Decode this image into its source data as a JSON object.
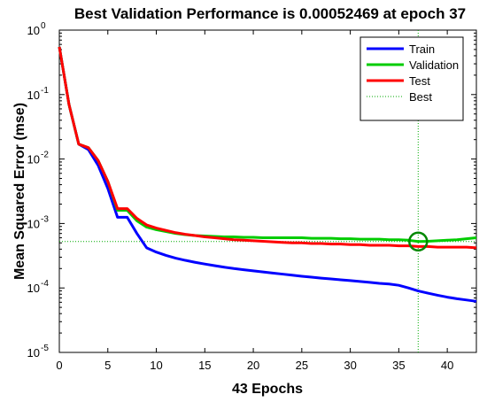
{
  "chart_data": {
    "type": "line",
    "title": "Best Validation Performance is 0.00052469 at epoch 37",
    "xlabel": "43 Epochs",
    "ylabel": "Mean Squared Error  (mse)",
    "xlim": [
      0,
      43
    ],
    "ylim": [
      1e-05,
      1
    ],
    "yscale": "log",
    "x_ticks": [
      "0",
      "5",
      "10",
      "15",
      "20",
      "25",
      "30",
      "35",
      "40"
    ],
    "y_ticks": [
      {
        "base": "10",
        "exp": "0"
      },
      {
        "base": "10",
        "exp": "-1"
      },
      {
        "base": "10",
        "exp": "-2"
      },
      {
        "base": "10",
        "exp": "-3"
      },
      {
        "base": "10",
        "exp": "-4"
      },
      {
        "base": "10",
        "exp": "-5"
      }
    ],
    "legend_position": "top-right",
    "series": [
      {
        "name": "Train",
        "color": "#0000ff",
        "x": [
          0,
          1,
          2,
          3,
          4,
          5,
          6,
          7,
          8,
          9,
          10,
          11,
          12,
          13,
          14,
          15,
          16,
          17,
          18,
          19,
          20,
          21,
          22,
          23,
          24,
          25,
          26,
          27,
          28,
          29,
          30,
          31,
          32,
          33,
          34,
          35,
          36,
          37,
          38,
          39,
          40,
          41,
          42,
          43
        ],
        "values": [
          0.55,
          0.07,
          0.017,
          0.014,
          0.008,
          0.0035,
          0.00125,
          0.00125,
          0.0007,
          0.00042,
          0.00036,
          0.00032,
          0.00029,
          0.000268,
          0.00025,
          0.000235,
          0.000222,
          0.00021,
          0.0002,
          0.000192,
          0.000184,
          0.000177,
          0.00017,
          0.000164,
          0.000158,
          0.000152,
          0.000147,
          0.000142,
          0.000138,
          0.000134,
          0.00013,
          0.000126,
          0.000122,
          0.000118,
          0.000115,
          0.00011,
          0.0001,
          9e-05,
          8.3e-05,
          7.7e-05,
          7.2e-05,
          6.8e-05,
          6.5e-05,
          6.2e-05
        ]
      },
      {
        "name": "Validation",
        "color": "#00cc00",
        "x": [
          0,
          1,
          2,
          3,
          4,
          5,
          6,
          7,
          8,
          9,
          10,
          11,
          12,
          13,
          14,
          15,
          16,
          17,
          18,
          19,
          20,
          21,
          22,
          23,
          24,
          25,
          26,
          27,
          28,
          29,
          30,
          31,
          32,
          33,
          34,
          35,
          36,
          37,
          38,
          39,
          40,
          41,
          42,
          43
        ],
        "values": [
          0.55,
          0.07,
          0.017,
          0.015,
          0.0095,
          0.0045,
          0.0016,
          0.0016,
          0.0011,
          0.00088,
          0.0008,
          0.00075,
          0.0007,
          0.00067,
          0.00065,
          0.00064,
          0.00063,
          0.00062,
          0.00062,
          0.00061,
          0.00061,
          0.0006,
          0.0006,
          0.0006,
          0.0006,
          0.0006,
          0.00059,
          0.00059,
          0.00059,
          0.00058,
          0.00058,
          0.00057,
          0.00057,
          0.00057,
          0.00056,
          0.00056,
          0.00055,
          0.00052469,
          0.00053,
          0.00054,
          0.00055,
          0.00056,
          0.00058,
          0.0006
        ]
      },
      {
        "name": "Test",
        "color": "#ff0000",
        "x": [
          0,
          1,
          2,
          3,
          4,
          5,
          6,
          7,
          8,
          9,
          10,
          11,
          12,
          13,
          14,
          15,
          16,
          17,
          18,
          19,
          20,
          21,
          22,
          23,
          24,
          25,
          26,
          27,
          28,
          29,
          30,
          31,
          32,
          33,
          34,
          35,
          36,
          37,
          38,
          39,
          40,
          41,
          42,
          43
        ],
        "values": [
          0.55,
          0.07,
          0.017,
          0.015,
          0.0095,
          0.0045,
          0.0017,
          0.0017,
          0.0012,
          0.00095,
          0.00085,
          0.00078,
          0.00072,
          0.00068,
          0.00065,
          0.00062,
          0.0006,
          0.00058,
          0.00056,
          0.00055,
          0.00054,
          0.00053,
          0.00052,
          0.00051,
          0.0005,
          0.0005,
          0.00049,
          0.00049,
          0.00048,
          0.00048,
          0.00047,
          0.00047,
          0.00046,
          0.00046,
          0.00046,
          0.00045,
          0.00045,
          0.00044,
          0.00044,
          0.00043,
          0.00043,
          0.00043,
          0.00043,
          0.00042
        ]
      }
    ],
    "best": {
      "name": "Best",
      "color": "#00aa00",
      "epoch": 37,
      "value": 0.00052469
    }
  }
}
